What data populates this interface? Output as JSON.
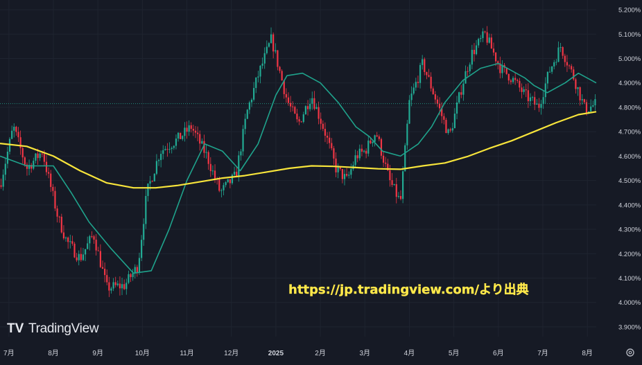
{
  "brand": {
    "logo_text": "TV",
    "name": "TradingView"
  },
  "source_note": "https://jp.tradingview.com/より出典",
  "colors": {
    "background": "#161a25",
    "grid": "#1f2430",
    "up": "#22ab94",
    "down": "#f23645",
    "ma_short": "#1fa38c",
    "ma_long": "#f8e53b",
    "current_price_line": "#22ab94"
  },
  "icons": {
    "settings": "settings-gear-icon"
  },
  "chart_data": {
    "type": "candlestick",
    "title": "",
    "y_tick_labels": [
      "5.200%",
      "5.100%",
      "5.000%",
      "4.900%",
      "4.800%",
      "4.700%",
      "4.600%",
      "4.500%",
      "4.400%",
      "4.300%",
      "4.200%",
      "4.100%",
      "4.000%",
      "3.900%"
    ],
    "y_tick_values": [
      5.2,
      5.1,
      5.0,
      4.9,
      4.8,
      4.7,
      4.6,
      4.5,
      4.4,
      4.3,
      4.2,
      4.1,
      4.0,
      3.9
    ],
    "ylim": [
      3.86,
      5.24
    ],
    "y_unit": "%",
    "x_range": [
      0,
      13.4
    ],
    "x_tick_labels": [
      "7月",
      "8月",
      "9月",
      "10月",
      "11月",
      "12月",
      "2025",
      "2月",
      "3月",
      "4月",
      "5月",
      "6月",
      "7月",
      "8月"
    ],
    "x_tick_values": [
      0.2,
      1.2,
      2.2,
      3.2,
      4.2,
      5.2,
      6.2,
      7.2,
      8.2,
      9.2,
      10.2,
      11.2,
      12.2,
      13.2
    ],
    "last_price": 4.815,
    "close_path": {
      "x": [
        0.0,
        0.3,
        0.6,
        0.95,
        1.3,
        1.5,
        1.8,
        2.1,
        2.4,
        2.8,
        3.1,
        3.3,
        3.6,
        4.0,
        4.3,
        4.65,
        4.95,
        5.3,
        5.55,
        5.8,
        6.1,
        6.45,
        6.7,
        7.0,
        7.3,
        7.55,
        7.8,
        8.0,
        8.2,
        8.45,
        8.75,
        9.0,
        9.2,
        9.5,
        9.8,
        10.1,
        10.4,
        10.6,
        10.9,
        11.25,
        11.5,
        11.8,
        12.1,
        12.35,
        12.6,
        12.9,
        13.15,
        13.4
      ],
      "y": [
        4.48,
        4.72,
        4.55,
        4.62,
        4.35,
        4.25,
        4.18,
        4.28,
        4.06,
        4.07,
        4.15,
        4.45,
        4.62,
        4.67,
        4.72,
        4.6,
        4.45,
        4.52,
        4.78,
        4.93,
        5.08,
        4.83,
        4.73,
        4.85,
        4.7,
        4.55,
        4.5,
        4.6,
        4.62,
        4.7,
        4.5,
        4.41,
        4.82,
        4.98,
        4.83,
        4.68,
        4.9,
        5.02,
        5.1,
        4.96,
        4.92,
        4.85,
        4.8,
        4.95,
        5.05,
        4.92,
        4.79,
        4.815
      ]
    },
    "series": [
      {
        "color": "#1fa38c",
        "x": [
          0.0,
          0.6,
          1.2,
          1.6,
          2.0,
          2.5,
          3.0,
          3.4,
          3.8,
          4.2,
          4.6,
          5.0,
          5.4,
          5.8,
          6.2,
          6.45,
          6.8,
          7.2,
          7.6,
          8.0,
          8.3,
          8.6,
          9.0,
          9.4,
          9.7,
          10.0,
          10.4,
          10.8,
          11.2,
          11.5,
          11.8,
          12.0,
          12.3,
          12.7,
          13.0,
          13.4
        ],
        "y": [
          4.6,
          4.56,
          4.56,
          4.45,
          4.33,
          4.22,
          4.12,
          4.13,
          4.3,
          4.5,
          4.65,
          4.62,
          4.54,
          4.65,
          4.85,
          4.93,
          4.94,
          4.9,
          4.82,
          4.72,
          4.68,
          4.62,
          4.6,
          4.65,
          4.72,
          4.82,
          4.91,
          4.96,
          4.98,
          4.95,
          4.92,
          4.89,
          4.86,
          4.9,
          4.94,
          4.9
        ]
      },
      {
        "color": "#f8e53b",
        "x": [
          0.0,
          0.6,
          1.2,
          1.8,
          2.4,
          3.0,
          3.5,
          4.0,
          4.5,
          5.0,
          5.5,
          6.0,
          6.5,
          7.0,
          7.5,
          8.0,
          8.5,
          9.0,
          9.5,
          10.0,
          10.5,
          11.0,
          11.5,
          12.0,
          12.5,
          13.0,
          13.4
        ],
        "y": [
          4.652,
          4.64,
          4.6,
          4.54,
          4.49,
          4.47,
          4.47,
          4.48,
          4.495,
          4.51,
          4.52,
          4.535,
          4.55,
          4.56,
          4.558,
          4.553,
          4.548,
          4.546,
          4.56,
          4.572,
          4.598,
          4.632,
          4.663,
          4.7,
          4.737,
          4.77,
          4.782
        ]
      }
    ],
    "grid": true,
    "legend": "none",
    "moving_averages": true
  }
}
